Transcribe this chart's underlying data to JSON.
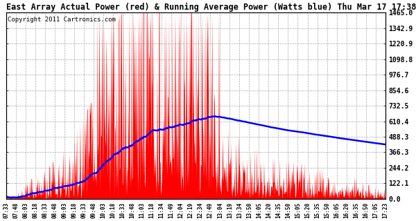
{
  "title": "East Array Actual Power (red) & Running Average Power (Watts blue) Thu Mar 17 17:38",
  "copyright": "Copyright 2011 Cartronics.com",
  "yticks": [
    0.0,
    122.1,
    244.2,
    366.3,
    488.3,
    610.4,
    732.5,
    854.6,
    976.7,
    1098.8,
    1220.9,
    1342.9,
    1465.0
  ],
  "ymax": 1465.0,
  "xtick_labels": [
    "07:33",
    "07:48",
    "08:03",
    "08:18",
    "08:33",
    "08:48",
    "09:03",
    "09:18",
    "09:33",
    "09:48",
    "10:03",
    "10:18",
    "10:33",
    "10:48",
    "11:03",
    "11:18",
    "11:34",
    "11:49",
    "12:04",
    "12:19",
    "12:34",
    "12:49",
    "13:04",
    "13:19",
    "13:34",
    "13:50",
    "14:05",
    "14:20",
    "14:35",
    "14:50",
    "15:05",
    "15:20",
    "15:35",
    "15:50",
    "16:05",
    "16:20",
    "16:35",
    "16:50",
    "17:05",
    "17:23"
  ],
  "bg_color": "#ffffff",
  "grid_color": "#aaaaaa",
  "fill_color": "#ff0000",
  "line_color": "#0000ff",
  "title_color": "#000000",
  "title_fontsize": 8.5,
  "copyright_fontsize": 6.5,
  "ytick_fontsize": 7,
  "xtick_fontsize": 5.5
}
